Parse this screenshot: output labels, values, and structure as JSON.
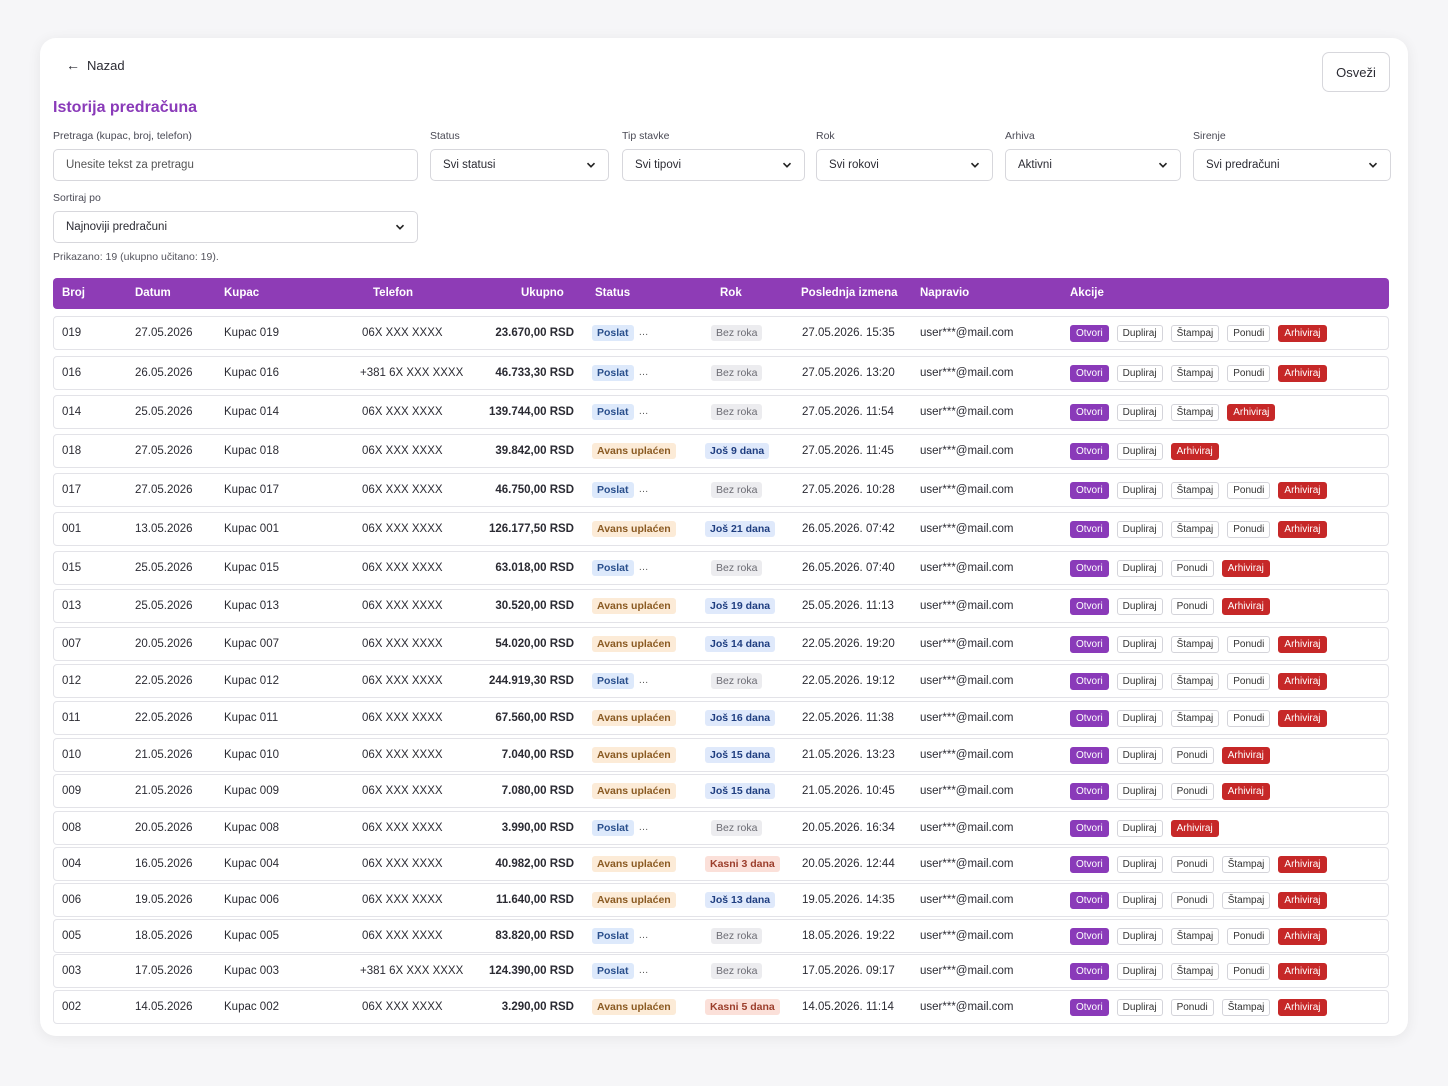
{
  "nav": {
    "back_label": "Nazad",
    "refresh_label": "Osveži"
  },
  "page": {
    "title": "Istorija predračuna"
  },
  "filters": {
    "search": {
      "label": "Pretraga (kupac, broj, telefon)",
      "placeholder": "Unesite tekst za pretragu"
    },
    "status": {
      "label": "Status",
      "value": "Svi statusi"
    },
    "item_type": {
      "label": "Tip stavke",
      "value": "Svi tipovi"
    },
    "deadline": {
      "label": "Rok",
      "value": "Svi rokovi"
    },
    "archive": {
      "label": "Arhiva",
      "value": "Aktivni"
    },
    "sharing": {
      "label": "Sirenje",
      "value": "Svi predračuni"
    },
    "sort": {
      "label": "Sortiraj po",
      "value": "Najnoviji predračuni"
    }
  },
  "summary": "Prikazano: 19 (ukupno učitano: 19).",
  "table": {
    "headers": [
      "Broj",
      "Datum",
      "Kupac",
      "Telefon",
      "Ukupno",
      "Status",
      "Rok",
      "Poslednja izmena",
      "Napravio",
      "Akcije"
    ],
    "rows": [
      {
        "num": "019",
        "date": "27.05.2026",
        "customer": "Kupac 019",
        "phone": "06X XXX XXXX",
        "total": "23.670,00 RSD",
        "status": "Poslat",
        "deadline": "Bez roka",
        "modified": "27.05.2026. 15:35",
        "author": "user***@mail.com",
        "actions": [
          "Otvori",
          "Dupliraj",
          "Štampaj",
          "Ponudi",
          "Arhiviraj"
        ]
      },
      {
        "num": "016",
        "date": "26.05.2026",
        "customer": "Kupac 016",
        "phone": "+381 6X XXX XXXX",
        "total": "46.733,30 RSD",
        "status": "Poslat",
        "deadline": "Bez roka",
        "modified": "27.05.2026. 13:20",
        "author": "user***@mail.com",
        "actions": [
          "Otvori",
          "Dupliraj",
          "Štampaj",
          "Ponudi",
          "Arhiviraj"
        ]
      },
      {
        "num": "014",
        "date": "25.05.2026",
        "customer": "Kupac 014",
        "phone": "06X XXX XXXX",
        "total": "139.744,00 RSD",
        "status": "Poslat",
        "deadline": "Bez roka",
        "modified": "27.05.2026. 11:54",
        "author": "user***@mail.com",
        "actions": [
          "Otvori",
          "Dupliraj",
          "Štampaj",
          "Arhiviraj"
        ]
      },
      {
        "num": "018",
        "date": "27.05.2026",
        "customer": "Kupac 018",
        "phone": "06X XXX XXXX",
        "total": "39.842,00 RSD",
        "status": "Avans uplaćen",
        "deadline": "Još 9 dana",
        "modified": "27.05.2026. 11:45",
        "author": "user***@mail.com",
        "actions": [
          "Otvori",
          "Dupliraj",
          "Arhiviraj"
        ]
      },
      {
        "num": "017",
        "date": "27.05.2026",
        "customer": "Kupac 017",
        "phone": "06X XXX XXXX",
        "total": "46.750,00 RSD",
        "status": "Poslat",
        "deadline": "Bez roka",
        "modified": "27.05.2026. 10:28",
        "author": "user***@mail.com",
        "actions": [
          "Otvori",
          "Dupliraj",
          "Štampaj",
          "Ponudi",
          "Arhiviraj"
        ]
      },
      {
        "num": "001",
        "date": "13.05.2026",
        "customer": "Kupac 001",
        "phone": "06X XXX XXXX",
        "total": "126.177,50 RSD",
        "status": "Avans uplaćen",
        "deadline": "Još 21 dana",
        "modified": "26.05.2026. 07:42",
        "author": "user***@mail.com",
        "actions": [
          "Otvori",
          "Dupliraj",
          "Štampaj",
          "Ponudi",
          "Arhiviraj"
        ]
      },
      {
        "num": "015",
        "date": "25.05.2026",
        "customer": "Kupac 015",
        "phone": "06X XXX XXXX",
        "total": "63.018,00 RSD",
        "status": "Poslat",
        "deadline": "Bez roka",
        "modified": "26.05.2026. 07:40",
        "author": "user***@mail.com",
        "actions": [
          "Otvori",
          "Dupliraj",
          "Ponudi",
          "Arhiviraj"
        ]
      },
      {
        "num": "013",
        "date": "25.05.2026",
        "customer": "Kupac 013",
        "phone": "06X XXX XXXX",
        "total": "30.520,00 RSD",
        "status": "Avans uplaćen",
        "deadline": "Još 19 dana",
        "modified": "25.05.2026. 11:13",
        "author": "user***@mail.com",
        "actions": [
          "Otvori",
          "Dupliraj",
          "Ponudi",
          "Arhiviraj"
        ]
      },
      {
        "num": "007",
        "date": "20.05.2026",
        "customer": "Kupac 007",
        "phone": "06X XXX XXXX",
        "total": "54.020,00 RSD",
        "status": "Avans uplaćen",
        "deadline": "Još 14 dana",
        "modified": "22.05.2026. 19:20",
        "author": "user***@mail.com",
        "actions": [
          "Otvori",
          "Dupliraj",
          "Štampaj",
          "Ponudi",
          "Arhiviraj"
        ]
      },
      {
        "num": "012",
        "date": "22.05.2026",
        "customer": "Kupac 012",
        "phone": "06X XXX XXXX",
        "total": "244.919,30 RSD",
        "status": "Poslat",
        "deadline": "Bez roka",
        "modified": "22.05.2026. 19:12",
        "author": "user***@mail.com",
        "actions": [
          "Otvori",
          "Dupliraj",
          "Štampaj",
          "Ponudi",
          "Arhiviraj"
        ]
      },
      {
        "num": "011",
        "date": "22.05.2026",
        "customer": "Kupac 011",
        "phone": "06X XXX XXXX",
        "total": "67.560,00 RSD",
        "status": "Avans uplaćen",
        "deadline": "Još 16 dana",
        "modified": "22.05.2026. 11:38",
        "author": "user***@mail.com",
        "actions": [
          "Otvori",
          "Dupliraj",
          "Štampaj",
          "Ponudi",
          "Arhiviraj"
        ]
      },
      {
        "num": "010",
        "date": "21.05.2026",
        "customer": "Kupac 010",
        "phone": "06X XXX XXXX",
        "total": "7.040,00 RSD",
        "status": "Avans uplaćen",
        "deadline": "Još 15 dana",
        "modified": "21.05.2026. 13:23",
        "author": "user***@mail.com",
        "actions": [
          "Otvori",
          "Dupliraj",
          "Ponudi",
          "Arhiviraj"
        ]
      },
      {
        "num": "009",
        "date": "21.05.2026",
        "customer": "Kupac 009",
        "phone": "06X XXX XXXX",
        "total": "7.080,00 RSD",
        "status": "Avans uplaćen",
        "deadline": "Još 15 dana",
        "modified": "21.05.2026. 10:45",
        "author": "user***@mail.com",
        "actions": [
          "Otvori",
          "Dupliraj",
          "Ponudi",
          "Arhiviraj"
        ]
      },
      {
        "num": "008",
        "date": "20.05.2026",
        "customer": "Kupac 008",
        "phone": "06X XXX XXXX",
        "total": "3.990,00 RSD",
        "status": "Poslat",
        "deadline": "Bez roka",
        "modified": "20.05.2026. 16:34",
        "author": "user***@mail.com",
        "actions": [
          "Otvori",
          "Dupliraj",
          "Arhiviraj"
        ]
      },
      {
        "num": "004",
        "date": "16.05.2026",
        "customer": "Kupac 004",
        "phone": "06X XXX XXXX",
        "total": "40.982,00 RSD",
        "status": "Avans uplaćen",
        "deadline": "Kasni 3 dana",
        "modified": "20.05.2026. 12:44",
        "author": "user***@mail.com",
        "actions": [
          "Otvori",
          "Dupliraj",
          "Ponudi",
          "Štampaj",
          "Arhiviraj"
        ]
      },
      {
        "num": "006",
        "date": "19.05.2026",
        "customer": "Kupac 006",
        "phone": "06X XXX XXXX",
        "total": "11.640,00 RSD",
        "status": "Avans uplaćen",
        "deadline": "Još 13 dana",
        "modified": "19.05.2026. 14:35",
        "author": "user***@mail.com",
        "actions": [
          "Otvori",
          "Dupliraj",
          "Ponudi",
          "Štampaj",
          "Arhiviraj"
        ]
      },
      {
        "num": "005",
        "date": "18.05.2026",
        "customer": "Kupac 005",
        "phone": "06X XXX XXXX",
        "total": "83.820,00 RSD",
        "status": "Poslat",
        "deadline": "Bez roka",
        "modified": "18.05.2026. 19:22",
        "author": "user***@mail.com",
        "actions": [
          "Otvori",
          "Dupliraj",
          "Štampaj",
          "Ponudi",
          "Arhiviraj"
        ]
      },
      {
        "num": "003",
        "date": "17.05.2026",
        "customer": "Kupac 003",
        "phone": "+381 6X XXX XXXX",
        "total": "124.390,00 RSD",
        "status": "Poslat",
        "deadline": "Bez roka",
        "modified": "17.05.2026. 09:17",
        "author": "user***@mail.com",
        "actions": [
          "Otvori",
          "Dupliraj",
          "Štampaj",
          "Ponudi",
          "Arhiviraj"
        ]
      },
      {
        "num": "002",
        "date": "14.05.2026",
        "customer": "Kupac 002",
        "phone": "06X XXX XXXX",
        "total": "3.290,00 RSD",
        "status": "Avans uplaćen",
        "deadline": "Kasni 5 dana",
        "modified": "14.05.2026. 11:14",
        "author": "user***@mail.com",
        "actions": [
          "Otvori",
          "Dupliraj",
          "Ponudi",
          "Štampaj",
          "Arhiviraj"
        ]
      }
    ]
  },
  "colors": {
    "accent": "#8e3cb6",
    "archive": "#c62828"
  }
}
